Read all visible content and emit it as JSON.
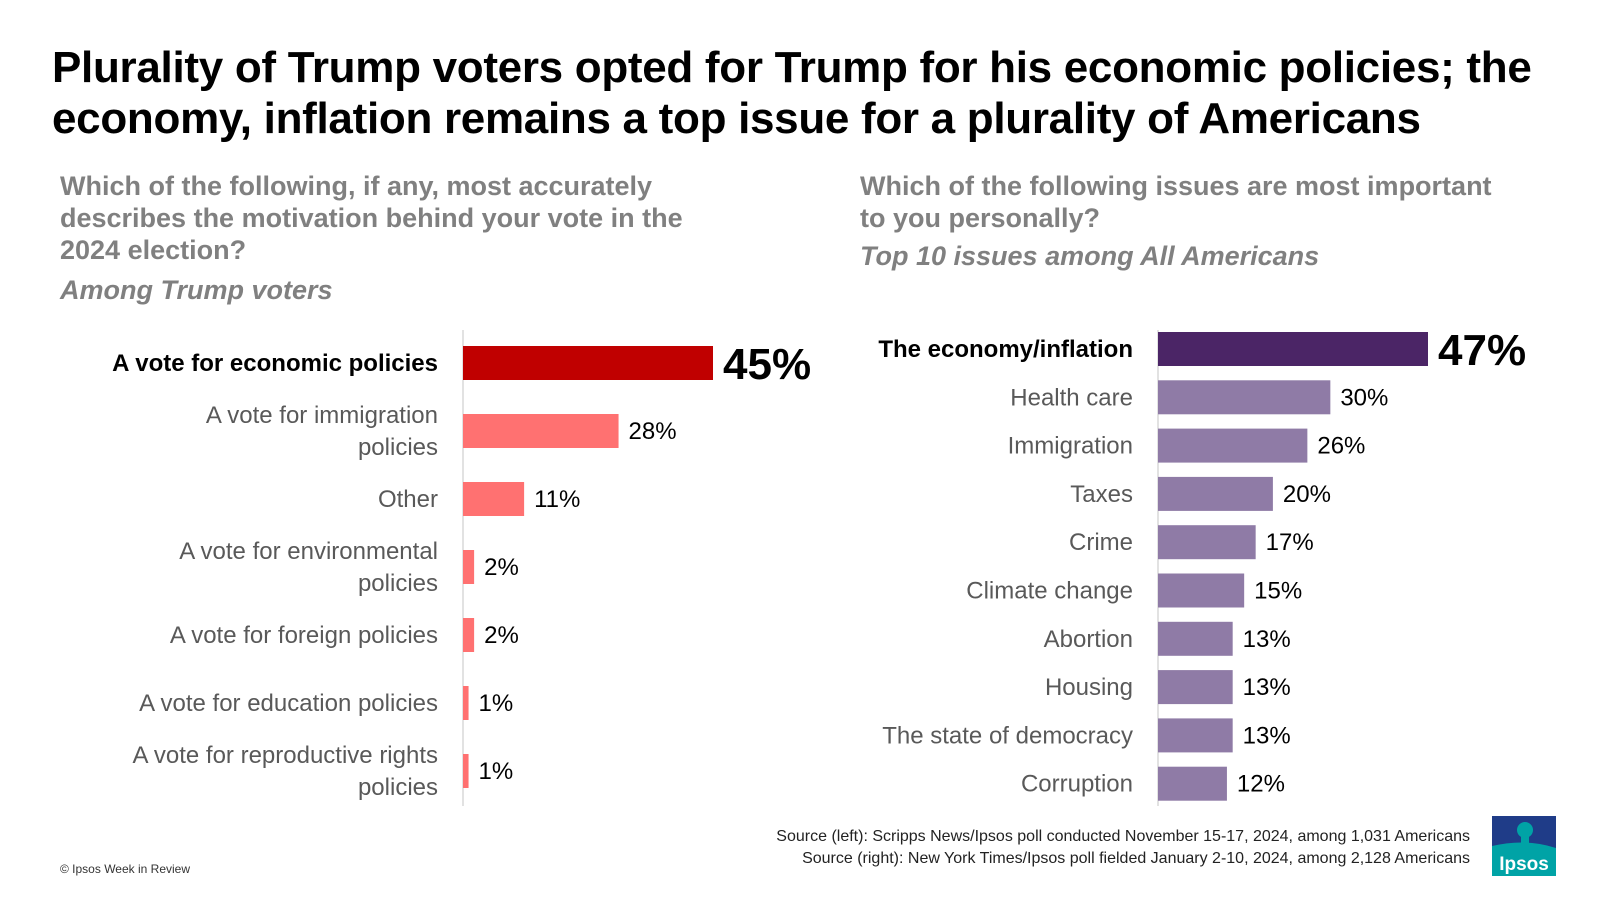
{
  "title": "Plurality of Trump voters opted for Trump for his economic policies; the economy, inflation remains a top issue for a plurality of Americans",
  "chart_data": [
    {
      "type": "bar",
      "orientation": "horizontal",
      "title": "Which of the following, if any, most accurately describes the motivation behind your vote in the 2024 election?",
      "subtitle": "Among Trump voters",
      "categories": [
        "A vote for economic policies",
        "A vote for immigration policies",
        "Other",
        "A vote for environmental policies",
        "A vote for foreign policies",
        "A vote for education policies",
        "A vote for reproductive rights policies"
      ],
      "values": [
        45,
        28,
        11,
        2,
        2,
        1,
        1
      ],
      "value_labels": [
        "45%",
        "28%",
        "11%",
        "2%",
        "2%",
        "1%",
        "1%"
      ],
      "highlight_index": 0,
      "colors": {
        "highlight": "#C00000",
        "default": "#FF7171"
      },
      "xlim": [
        0,
        45
      ],
      "grid": false
    },
    {
      "type": "bar",
      "orientation": "horizontal",
      "title": "Which of the following issues are most important to you personally?",
      "subtitle": "Top 10 issues among All Americans",
      "categories": [
        "The economy/inflation",
        "Health care",
        "Immigration",
        "Taxes",
        "Crime",
        "Climate change",
        "Abortion",
        "Housing",
        "The state of democracy",
        "Corruption"
      ],
      "values": [
        47,
        30,
        26,
        20,
        17,
        15,
        13,
        13,
        13,
        12
      ],
      "value_labels": [
        "47%",
        "30%",
        "26%",
        "20%",
        "17%",
        "15%",
        "13%",
        "13%",
        "13%",
        "12%"
      ],
      "highlight_index": 0,
      "colors": {
        "highlight": "#4B2566",
        "default": "#8F7BA6"
      },
      "xlim": [
        0,
        47
      ],
      "grid": false
    }
  ],
  "source": {
    "left": "Source (left): Scripps News/Ipsos poll conducted November 15-17, 2024, among 1,031 Americans",
    "right": "Source (right): New York Times/Ipsos poll fielded January 2-10, 2024, among 2,128 Americans"
  },
  "copyright": "© Ipsos Week in Review",
  "logo": {
    "text": "Ipsos",
    "color": "#00A3A6"
  }
}
